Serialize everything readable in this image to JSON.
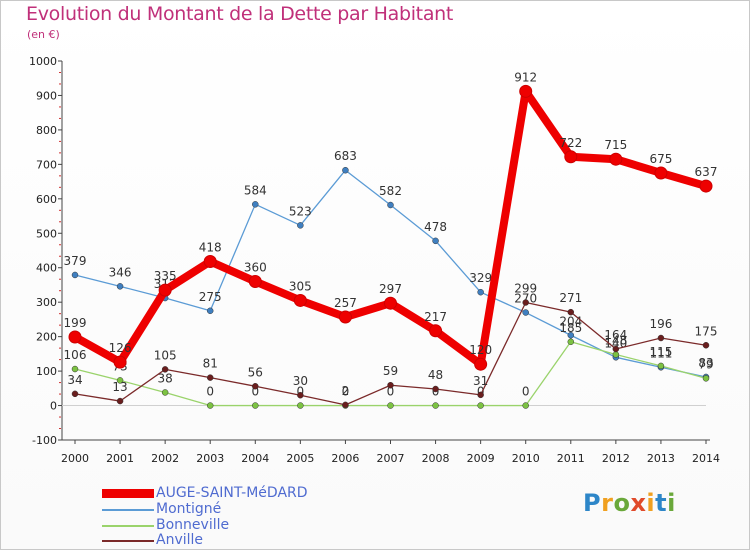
{
  "title": "Evolution du Montant de la Dette par Habitant",
  "subtitle": "(en €)",
  "logo_letters": [
    {
      "ch": "P",
      "color": "#2d86c8"
    },
    {
      "ch": "r",
      "color": "#f0a020"
    },
    {
      "ch": "o",
      "color": "#6aa83a"
    },
    {
      "ch": "x",
      "color": "#e04a2a"
    },
    {
      "ch": "i",
      "color": "#f0a020"
    },
    {
      "ch": "t",
      "color": "#2d86c8"
    },
    {
      "ch": "i",
      "color": "#6aa83a"
    }
  ],
  "chart_data": {
    "type": "line",
    "x": [
      "2000",
      "2001",
      "2002",
      "2003",
      "2004",
      "2005",
      "2006",
      "2007",
      "2008",
      "2009",
      "2010",
      "2011",
      "2012",
      "2013",
      "2014"
    ],
    "ylim": [
      -100,
      1000
    ],
    "yticks": [
      -100,
      0,
      100,
      200,
      300,
      400,
      500,
      600,
      700,
      800,
      900,
      1000
    ],
    "grid": false,
    "series": [
      {
        "name": "Montigné",
        "color": "#5b9bd5",
        "marker": "#3f7fc0",
        "values": [
          379,
          346,
          312,
          275,
          584,
          523,
          683,
          582,
          478,
          329,
          270,
          204,
          140,
          111,
          83
        ],
        "labels": [
          "379",
          "346",
          "312",
          "275",
          "584",
          "523",
          "683",
          "582",
          "478",
          "329",
          "270",
          "204",
          "140",
          "111",
          "83"
        ]
      },
      {
        "name": "Bonneville",
        "color": "#9ad36b",
        "marker": "#7cc242",
        "values": [
          106,
          73,
          38,
          0,
          0,
          0,
          0,
          0,
          0,
          0,
          0,
          185,
          148,
          115,
          79
        ],
        "labels": [
          "106",
          "73",
          "38",
          "0",
          "0",
          "0",
          "0",
          "0",
          "0",
          "0",
          "0",
          "185",
          "148",
          "115",
          "79"
        ]
      },
      {
        "name": "Anville",
        "color": "#7b2a2a",
        "marker": "#6a1e1e",
        "values": [
          34,
          13,
          105,
          81,
          56,
          30,
          2,
          59,
          48,
          31,
          299,
          271,
          164,
          196,
          175
        ],
        "labels": [
          "34",
          "13",
          "105",
          "81",
          "56",
          "30",
          "2",
          "59",
          "48",
          "31",
          "299",
          "271",
          "164",
          "196",
          "175"
        ]
      },
      {
        "name": "AUGE-SAINT-MéDARD",
        "color": "#ee0000",
        "marker": "#ee0000",
        "values": [
          199,
          126,
          335,
          418,
          360,
          305,
          257,
          297,
          217,
          120,
          912,
          722,
          715,
          675,
          637
        ],
        "labels": [
          "199",
          "126",
          "335",
          "418",
          "360",
          "305",
          "257",
          "297",
          "217",
          "120",
          "912",
          "722",
          "715",
          "675",
          "637"
        ]
      }
    ],
    "legend": [
      "AUGE-SAINT-MéDARD",
      "Montigné",
      "Bonneville",
      "Anville"
    ],
    "legend_position": "bottom-left"
  }
}
